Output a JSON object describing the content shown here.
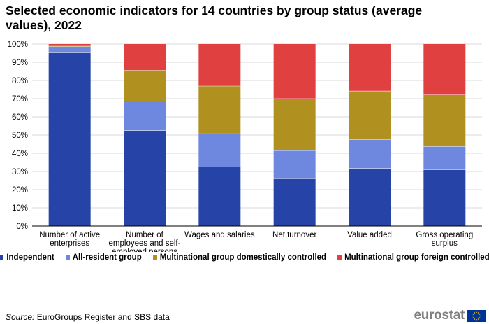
{
  "title": "Selected economic indicators for 14 countries by group status (average values), 2022",
  "chart_data": {
    "type": "bar",
    "stacked": true,
    "categories": [
      [
        "Number of active",
        "enterprises"
      ],
      [
        "Number of",
        "employees and self-",
        "employed persons"
      ],
      [
        "Wages and salaries"
      ],
      [
        "Net turnover"
      ],
      [
        "Value added"
      ],
      [
        "Gross operating",
        "surplus"
      ]
    ],
    "series": [
      {
        "name": "Independent",
        "color": "#2644A7",
        "values": [
          95.3,
          52.5,
          32.6,
          26.1,
          31.8,
          31.0
        ]
      },
      {
        "name": "All-resident group",
        "color": "#6E88E0",
        "values": [
          3.4,
          16.3,
          18.2,
          15.5,
          15.8,
          12.8
        ]
      },
      {
        "name": "Multinational group domestically controlled",
        "color": "#B09120",
        "values": [
          0.8,
          16.9,
          26.2,
          28.5,
          26.7,
          28.3
        ]
      },
      {
        "name": "Multinational group foreign controlled",
        "color": "#E04040",
        "values": [
          0.5,
          14.3,
          23.0,
          29.9,
          25.7,
          27.9
        ]
      }
    ],
    "y_ticks": [
      "0%",
      "10%",
      "20%",
      "30%",
      "40%",
      "50%",
      "60%",
      "70%",
      "80%",
      "90%",
      "100%"
    ],
    "ylim": [
      0,
      100
    ],
    "grid": true,
    "legend_position": "bottom"
  },
  "source_label": "Source:",
  "source_text": " EuroGroups Register and SBS data",
  "logo_text": "eurostat"
}
